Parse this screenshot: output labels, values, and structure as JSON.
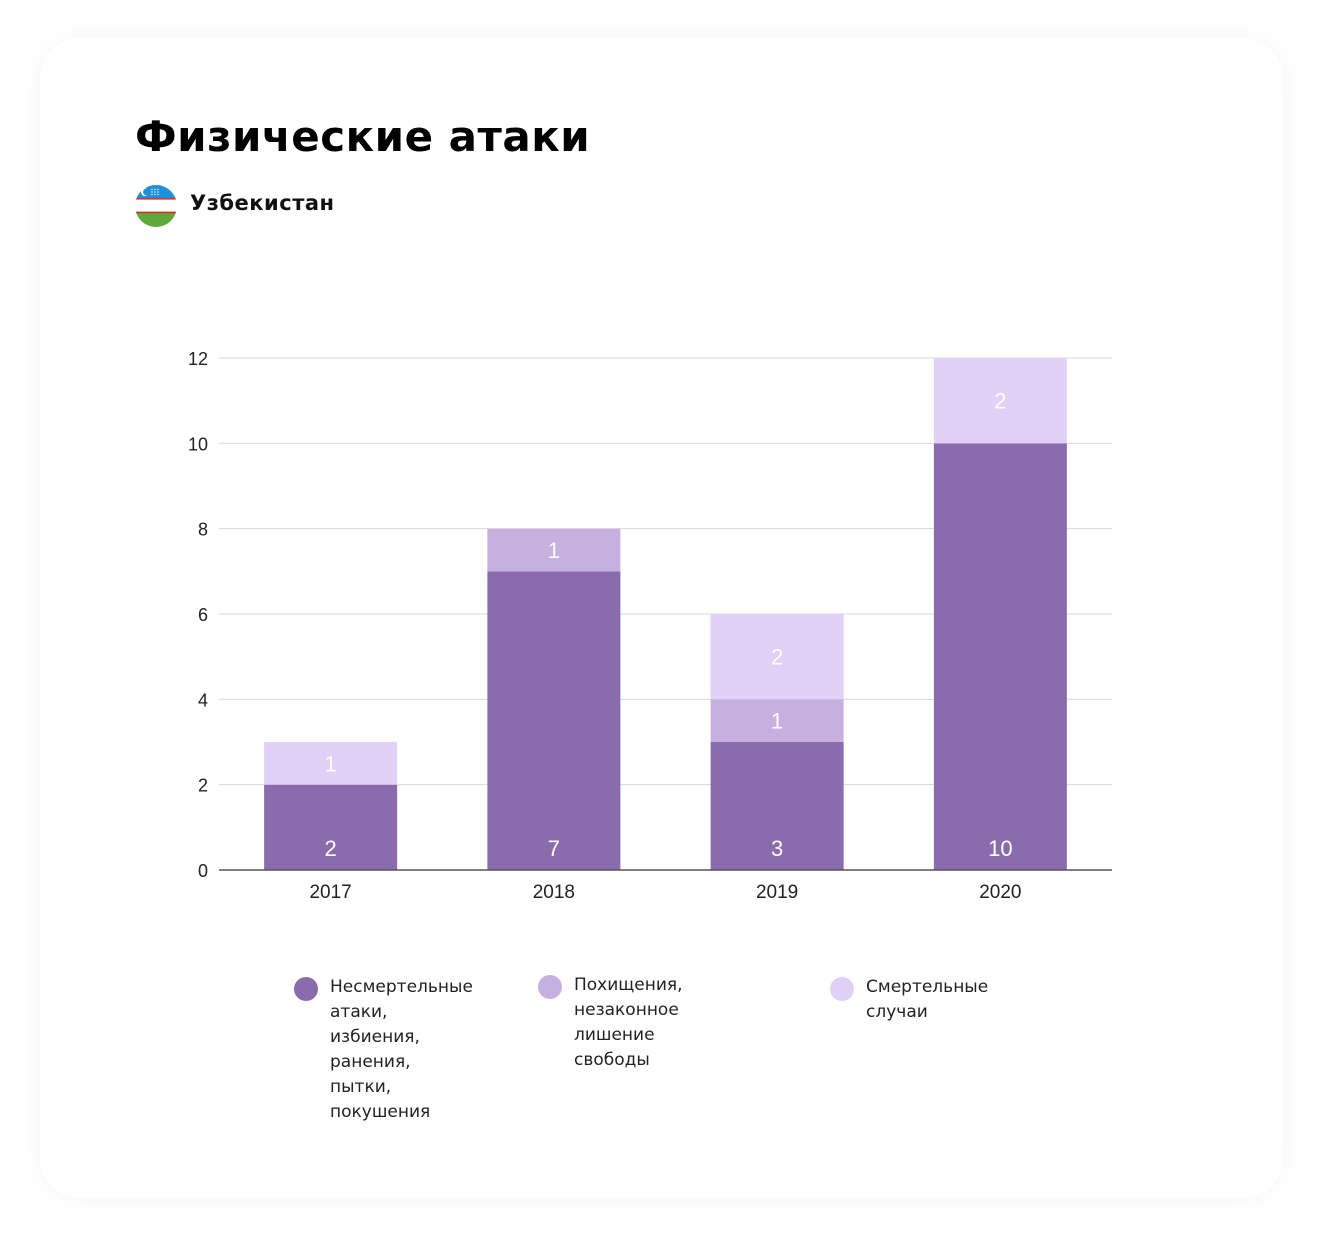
{
  "header": {
    "title": "Физические атаки",
    "country": "Узбекистан",
    "flag_icon": "uzbekistan-flag-icon"
  },
  "colors": {
    "nonfatal": "#8a6cad",
    "kidnapping": "#c5b0e0",
    "fatal": "#e1d1f8",
    "grid": "#d8d8d8",
    "axis": "#555555",
    "tick_text": "#222222",
    "value_text": "#ffffff"
  },
  "chart_data": {
    "type": "bar",
    "stacked": true,
    "categories": [
      "2017",
      "2018",
      "2019",
      "2020"
    ],
    "series": [
      {
        "name": "Несмертельные атаки, избиения, ранения, пытки, покушения",
        "values": [
          2,
          7,
          3,
          10
        ]
      },
      {
        "name": "Похищения, незаконное лишение свободы",
        "values": [
          0,
          1,
          1,
          0
        ]
      },
      {
        "name": "Смертельные случаи",
        "values": [
          1,
          0,
          2,
          2
        ]
      }
    ],
    "yticks": [
      0,
      2,
      4,
      6,
      8,
      10,
      12
    ],
    "ylim": [
      0,
      12
    ],
    "grid": true,
    "legend_position": "bottom"
  },
  "legend": [
    {
      "lines": [
        "Несмертельные",
        "атаки, избиения,",
        "ранения, пытки,",
        "покушения"
      ]
    },
    {
      "lines": [
        "Похищения,",
        "незаконное",
        "лишение свободы"
      ]
    },
    {
      "lines": [
        "Смертельные",
        "случаи"
      ]
    }
  ]
}
